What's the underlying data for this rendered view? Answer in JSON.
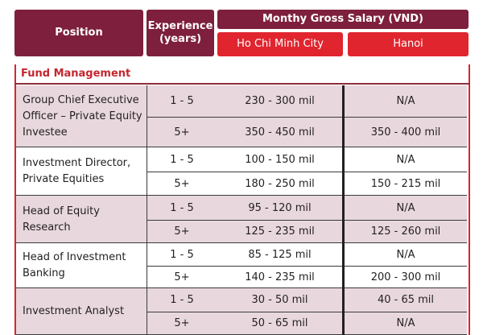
{
  "header": {
    "position": "Position",
    "experience": "Experience\n(years)",
    "salary": "Monthy Gross Salary (VND)",
    "hcmc": "Ho Chi Minh City",
    "hanoi": "Hanoi"
  },
  "section": {
    "title": "Fund Management"
  },
  "rows": [
    {
      "position": "Group Chief Executive Officer – Private Equity Investee",
      "lines": [
        {
          "exp": "1 - 5",
          "hcmc": "230 - 300 mil",
          "hanoi": "N/A"
        },
        {
          "exp": "5+",
          "hcmc": "350 - 450 mil",
          "hanoi": "350 - 400 mil"
        }
      ]
    },
    {
      "position": "Investment Director, Private Equities",
      "lines": [
        {
          "exp": "1 - 5",
          "hcmc": "100 - 150 mil",
          "hanoi": "N/A"
        },
        {
          "exp": "5+",
          "hcmc": "180 - 250 mil",
          "hanoi": "150 - 215 mil"
        }
      ]
    },
    {
      "position": "Head of Equity Research",
      "lines": [
        {
          "exp": "1 - 5",
          "hcmc": "95 - 120 mil",
          "hanoi": "N/A"
        },
        {
          "exp": "5+",
          "hcmc": "125 - 235 mil",
          "hanoi": "125 - 260 mil"
        }
      ]
    },
    {
      "position": "Head of Investment Banking",
      "lines": [
        {
          "exp": "1 - 5",
          "hcmc": "85 - 125 mil",
          "hanoi": "N/A"
        },
        {
          "exp": "5+",
          "hcmc": "140 - 235 mil",
          "hanoi": "200 - 300 mil"
        }
      ]
    },
    {
      "position": "Investment Analyst",
      "lines": [
        {
          "exp": "1 - 5",
          "hcmc": "30 - 50 mil",
          "hanoi": "40 - 65 mil"
        },
        {
          "exp": "5+",
          "hcmc": "50 - 65 mil",
          "hanoi": "N/A"
        }
      ]
    }
  ],
  "colors": {
    "header_maroon": "#7d1f3d",
    "header_red": "#e0252f",
    "section_red": "#c4262e",
    "shade": "#e8d8dd"
  }
}
